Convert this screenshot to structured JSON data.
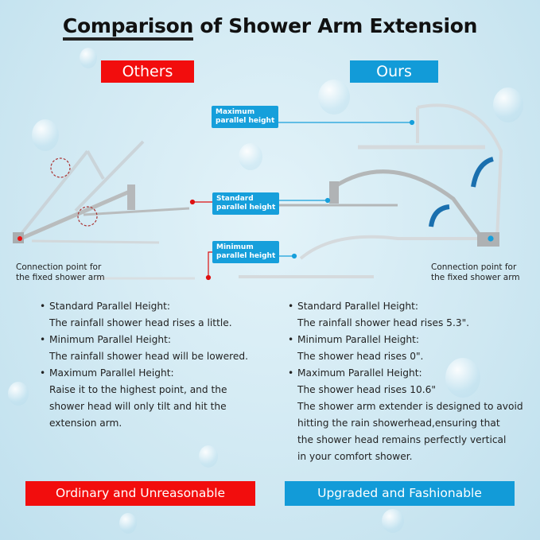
{
  "title": {
    "underlined": "Comparison",
    "rest": " of Shower Arm Extension"
  },
  "others": {
    "badge": "Others",
    "connection_label": [
      "Connection point for",
      "the fixed shower arm"
    ],
    "bullets": [
      {
        "heading": "Standard Parallel Height:",
        "lines": [
          "The rainfall shower head rises a little."
        ]
      },
      {
        "heading": "Minimum Parallel Height:",
        "lines": [
          "The rainfall shower head will be lowered."
        ]
      },
      {
        "heading": "Maximum Parallel Height:",
        "lines": [
          "Raise it to the highest point, and the",
          "shower head will only tilt and hit the",
          "extension arm."
        ]
      }
    ],
    "footer": "Ordinary and Unreasonable"
  },
  "ours": {
    "badge": "Ours",
    "connection_label": [
      "Connection point for",
      "the fixed shower arm"
    ],
    "bullets": [
      {
        "heading": "Standard Parallel Height:",
        "lines": [
          "The rainfall shower head rises 5.3\"."
        ]
      },
      {
        "heading": "Minimum Parallel Height:",
        "lines": [
          "The shower head rises 0\"."
        ]
      },
      {
        "heading": "Maximum Parallel Height:",
        "lines": [
          "The shower head rises 10.6\"",
          "The shower arm extender is designed to avoid",
          "hitting the rain showerhead,ensuring that",
          "the shower head remains perfectly vertical",
          "in your comfort shower."
        ]
      }
    ],
    "footer": "Upgraded and Fashionable"
  },
  "tags": {
    "maximum": [
      "Maximum",
      "parallel height"
    ],
    "standard": [
      "Standard",
      "parallel height"
    ],
    "minimum": [
      "Minimum",
      "parallel height"
    ]
  },
  "colors": {
    "others": "#f20d0d",
    "ours": "#129bd8",
    "background": "#cfe8f2"
  }
}
